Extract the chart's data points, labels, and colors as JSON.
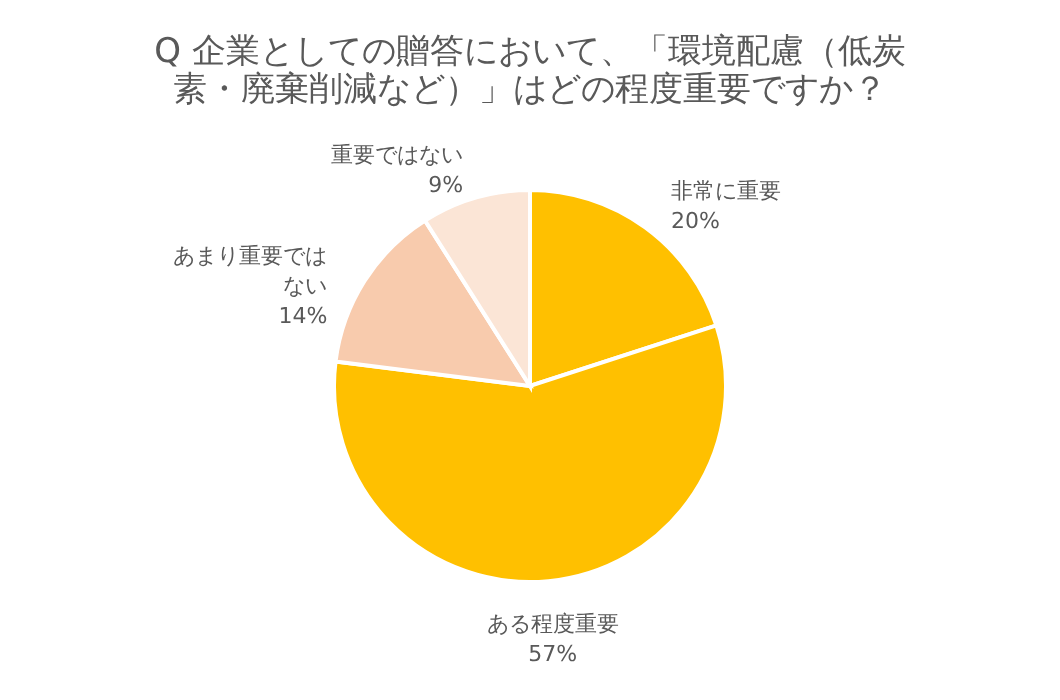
{
  "chart_data": {
    "type": "pie",
    "title": "Q 企業としての贈答において、「環境配慮（低炭素・廃棄削減など）」はどの程度重要ですか？",
    "categories": [
      "非常に重要",
      "ある程度重要",
      "あまり重要ではない",
      "重要ではない"
    ],
    "values": [
      20,
      57,
      14,
      9
    ],
    "value_labels": [
      "20%",
      "57%",
      "14%",
      "9%"
    ],
    "colors": [
      "#ffc000",
      "#ffc000",
      "#f8cbad",
      "#fbe5d6"
    ]
  }
}
